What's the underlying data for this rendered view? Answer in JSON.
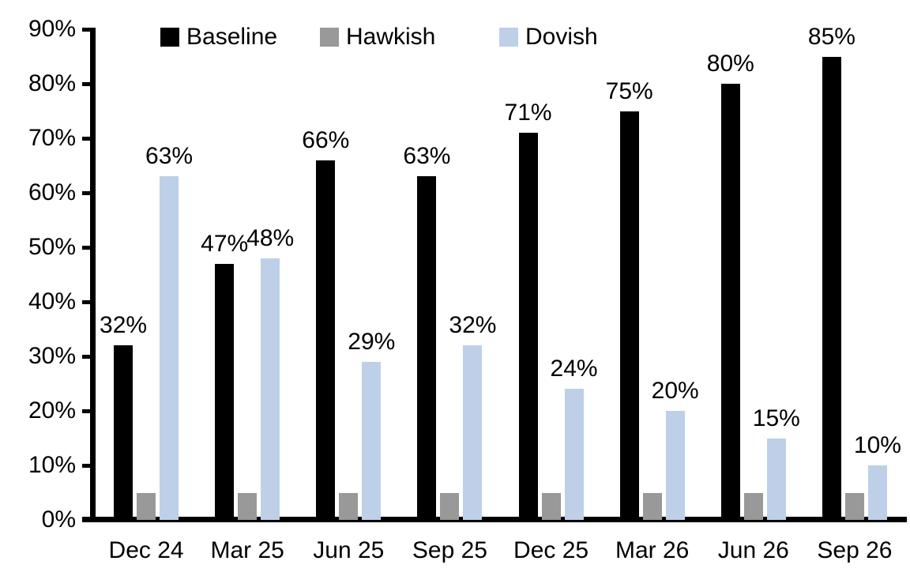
{
  "chart_data": {
    "type": "bar",
    "title": "",
    "xlabel": "",
    "ylabel": "",
    "categories": [
      "Dec 24",
      "Mar 25",
      "Jun 25",
      "Sep 25",
      "Dec 25",
      "Mar 26",
      "Jun 26",
      "Sep 26"
    ],
    "series": [
      {
        "name": "Baseline",
        "color": "#000000",
        "values": [
          32,
          47,
          66,
          63,
          71,
          75,
          80,
          85
        ],
        "labels": [
          "32%",
          "47%",
          "66%",
          "63%",
          "71%",
          "75%",
          "80%",
          "85%"
        ],
        "show_labels": true
      },
      {
        "name": "Hawkish",
        "color": "#999999",
        "values": [
          5,
          5,
          5,
          5,
          5,
          5,
          5,
          5
        ],
        "labels": [],
        "show_labels": false
      },
      {
        "name": "Dovish",
        "color": "#bdd0e8",
        "values": [
          63,
          48,
          29,
          32,
          24,
          20,
          15,
          10
        ],
        "labels": [
          "63%",
          "48%",
          "29%",
          "32%",
          "24%",
          "20%",
          "15%",
          "10%"
        ],
        "show_labels": true
      }
    ],
    "ylim": [
      0,
      90
    ],
    "ytick_step": 10,
    "ytick_labels": [
      "0%",
      "10%",
      "20%",
      "30%",
      "40%",
      "50%",
      "60%",
      "70%",
      "80%",
      "90%"
    ],
    "legend_position": "top",
    "grid": false,
    "axis_color": "#000000",
    "text_color": "#000000"
  }
}
